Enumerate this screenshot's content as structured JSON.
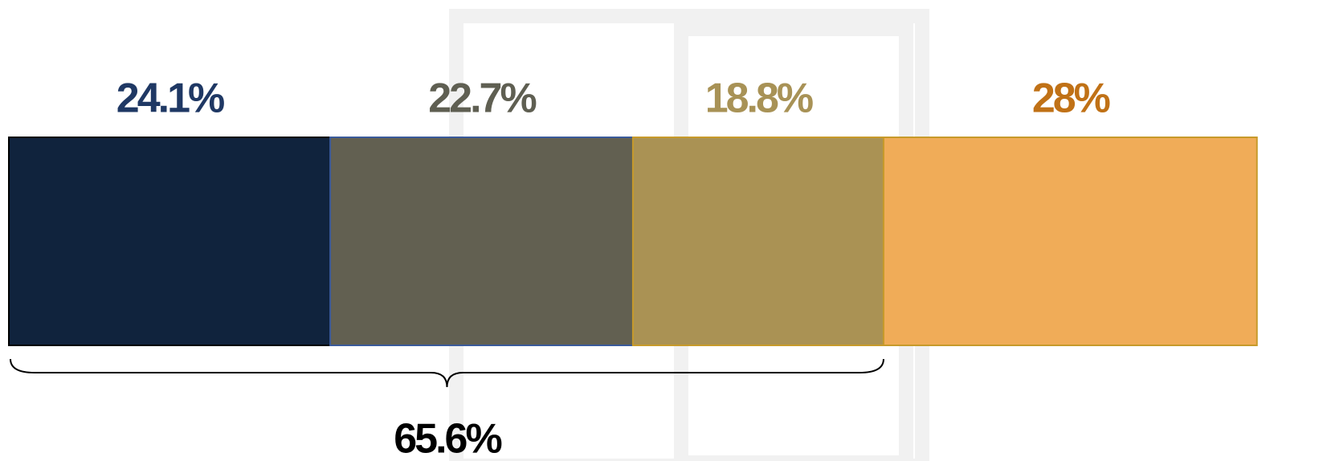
{
  "chart_data": {
    "type": "stacked-bar",
    "values": [
      24.1,
      22.7,
      18.8,
      28
    ],
    "value_labels": [
      "24.1%",
      "22.7%",
      "18.8%",
      "28%"
    ],
    "colors": [
      "#10233d",
      "#626051",
      "#aa9254",
      "#f0ac58"
    ],
    "label_colors": [
      "#1f3864",
      "#5f5f52",
      "#a89256",
      "#c07116"
    ],
    "annotation": {
      "value": 65.6,
      "label": "65.6%"
    }
  }
}
